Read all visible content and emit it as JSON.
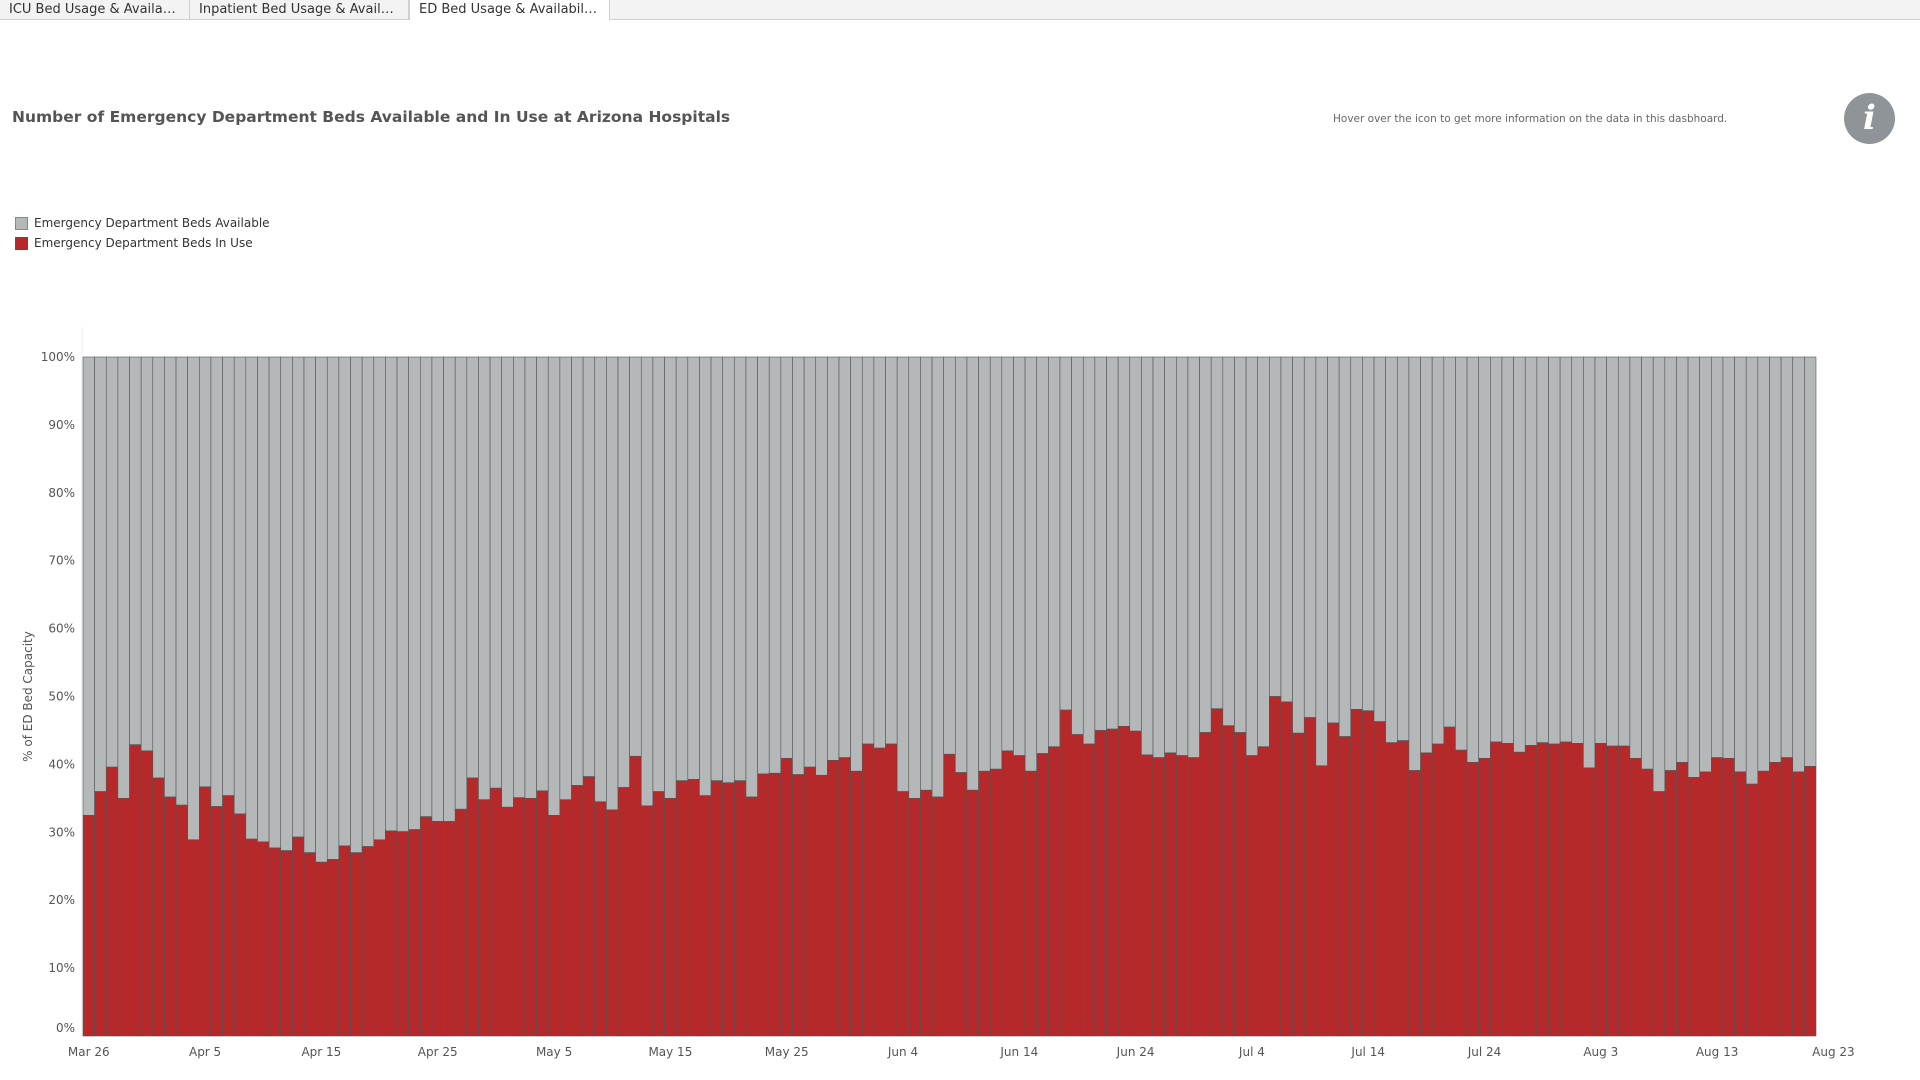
{
  "tabs": [
    {
      "label": "ICU Bed Usage & Availability"
    },
    {
      "label": "Inpatient Bed Usage & Availabi..."
    },
    {
      "label": "ED Bed Usage & Availability"
    }
  ],
  "header": {
    "title": "Number of Emergency Department Beds Available and In Use at Arizona Hospitals",
    "hover_note": "Hover over the icon to get more information on the data in this dasbhoard.",
    "info_icon": "info-icon",
    "info_glyph": "i"
  },
  "legend": {
    "available": "Emergency Department Beds Available",
    "in_use": "Emergency Department Beds In Use"
  },
  "colors": {
    "available": "#b4b8b9",
    "in_use": "#b5292a",
    "bar_stroke": "#555555"
  },
  "chart_data": {
    "type": "bar",
    "stacked": true,
    "ylabel": "% of ED Bed Capacity",
    "ylim": [
      0,
      100
    ],
    "yticks": [
      "0%",
      "10%",
      "20%",
      "30%",
      "40%",
      "50%",
      "60%",
      "70%",
      "80%",
      "90%",
      "100%"
    ],
    "xticks": [
      "Mar 26",
      "Apr 5",
      "Apr 15",
      "Apr 25",
      "May 5",
      "May 15",
      "May 25",
      "Jun 4",
      "Jun 14",
      "Jun 24",
      "Jul 4",
      "Jul 14",
      "Jul 24",
      "Aug 3",
      "Aug 13",
      "Aug 23"
    ],
    "x_start": "2020-03-26",
    "x_end": "2020-08-23",
    "legend_position": "top-left",
    "series": [
      {
        "name": "Emergency Department Beds In Use",
        "values": [
          32.5,
          36,
          39.6,
          35,
          42.9,
          42,
          38,
          35.2,
          34,
          28.9,
          36.7,
          33.8,
          35.4,
          32.7,
          29,
          28.6,
          27.7,
          27.3,
          29.3,
          27,
          25.6,
          26,
          28,
          27,
          27.9,
          28.9,
          30.2,
          30.1,
          30.4,
          32.3,
          31.6,
          31.6,
          33.4,
          38,
          34.8,
          36.5,
          33.7,
          35.1,
          35,
          36.1,
          32.5,
          34.8,
          36.9,
          38.2,
          34.5,
          33.3,
          36.6,
          41.2,
          33.9,
          36,
          35,
          37.6,
          37.8,
          35.4,
          37.6,
          37.3,
          37.6,
          35.2,
          38.6,
          38.7,
          40.9,
          38.5,
          39.6,
          38.4,
          40.6,
          41,
          39,
          43,
          42.4,
          43,
          36,
          35,
          36.2,
          35.2,
          41.5,
          38.8,
          36.2,
          39,
          39.3,
          42,
          41.3,
          39,
          41.6,
          42.6,
          48,
          44.4,
          43,
          45,
          45.2,
          45.6,
          44.9,
          41.4,
          41,
          41.7,
          41.3,
          41,
          44.7,
          48.2,
          45.7,
          44.7,
          41.3,
          42.6,
          50,
          49.2,
          44.6,
          46.9,
          39.8,
          46.1,
          44.1,
          48.1,
          47.9,
          46.3,
          43.2,
          43.5,
          39.1,
          41.7,
          43,
          45.5,
          42.1,
          40.3,
          40.9,
          43.3,
          43.1,
          41.8,
          42.8,
          43.2,
          43,
          43.3,
          43.1,
          39.5,
          43.1,
          42.7,
          42.7,
          40.9,
          39.3,
          36,
          39.1,
          40.3,
          38.1,
          38.9,
          41,
          40.9,
          38.9,
          37.1,
          39,
          40.3,
          41,
          38.9,
          39.7
        ]
      },
      {
        "name": "Emergency Department Beds Available",
        "values": "remainder-to-100"
      }
    ]
  }
}
